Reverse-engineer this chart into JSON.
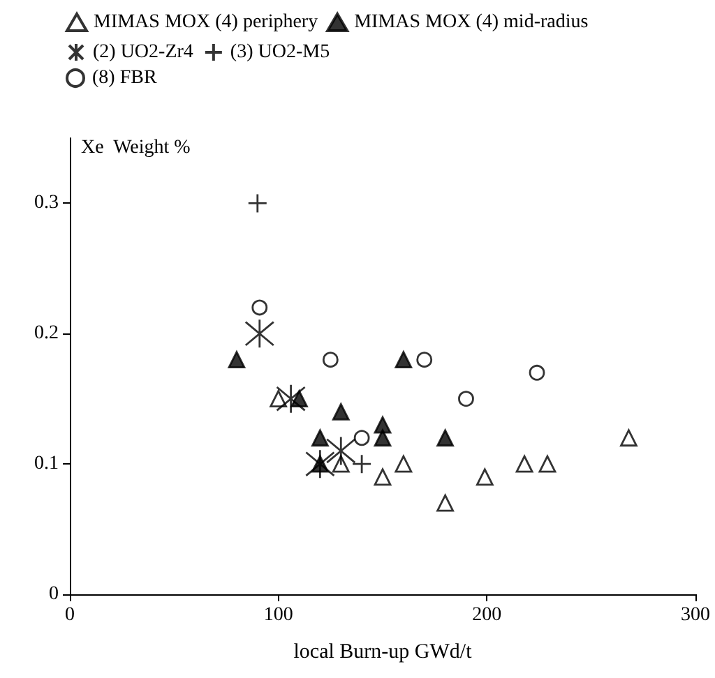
{
  "chart_data": {
    "type": "scatter",
    "xlabel": "local Burn-up GWd/t",
    "ylabel": "Xe  Weight %",
    "xlim": [
      0,
      300
    ],
    "xticks": [
      0,
      100,
      200,
      300
    ],
    "ylim": [
      0,
      0.35
    ],
    "yticks": [
      0,
      0.1,
      0.2,
      0.3
    ],
    "grid": false,
    "legend": "top left",
    "series": [
      {
        "name": "MIMAS MOX (4) periphery",
        "color": "#ffffff",
        "marker": "triangle",
        "x": [
          100,
          130,
          150,
          160,
          180,
          199,
          218,
          229,
          268
        ],
        "values": [
          0.15,
          0.1,
          0.09,
          0.1,
          0.07,
          0.09,
          0.1,
          0.1,
          0.12
        ]
      },
      {
        "name": "MIMAS MOX (4) mid-radius",
        "color": "#000000",
        "marker": "triangle",
        "x": [
          80,
          110,
          120,
          120,
          130,
          150,
          150,
          160,
          180
        ],
        "values": [
          0.18,
          0.15,
          0.12,
          0.1,
          0.14,
          0.13,
          0.12,
          0.18,
          0.12
        ]
      },
      {
        "name": "(2) UO2-Zr4",
        "color": "#000000",
        "marker": "cross",
        "x": [
          91,
          106,
          120,
          130
        ],
        "values": [
          0.2,
          0.15,
          0.1,
          0.11
        ]
      },
      {
        "name": "(3) UO2-M5",
        "color": "#000000",
        "x": [
          90,
          140
        ],
        "values": [
          0.3,
          0.1
        ]
      },
      {
        "name": "(8) FBR",
        "color": "#ffffff",
        "marker": "circle",
        "x": [
          91,
          125,
          140,
          170,
          190,
          224
        ],
        "values": [
          0.22,
          0.18,
          0.12,
          0.18,
          0.15,
          0.17
        ]
      }
    ]
  }
}
